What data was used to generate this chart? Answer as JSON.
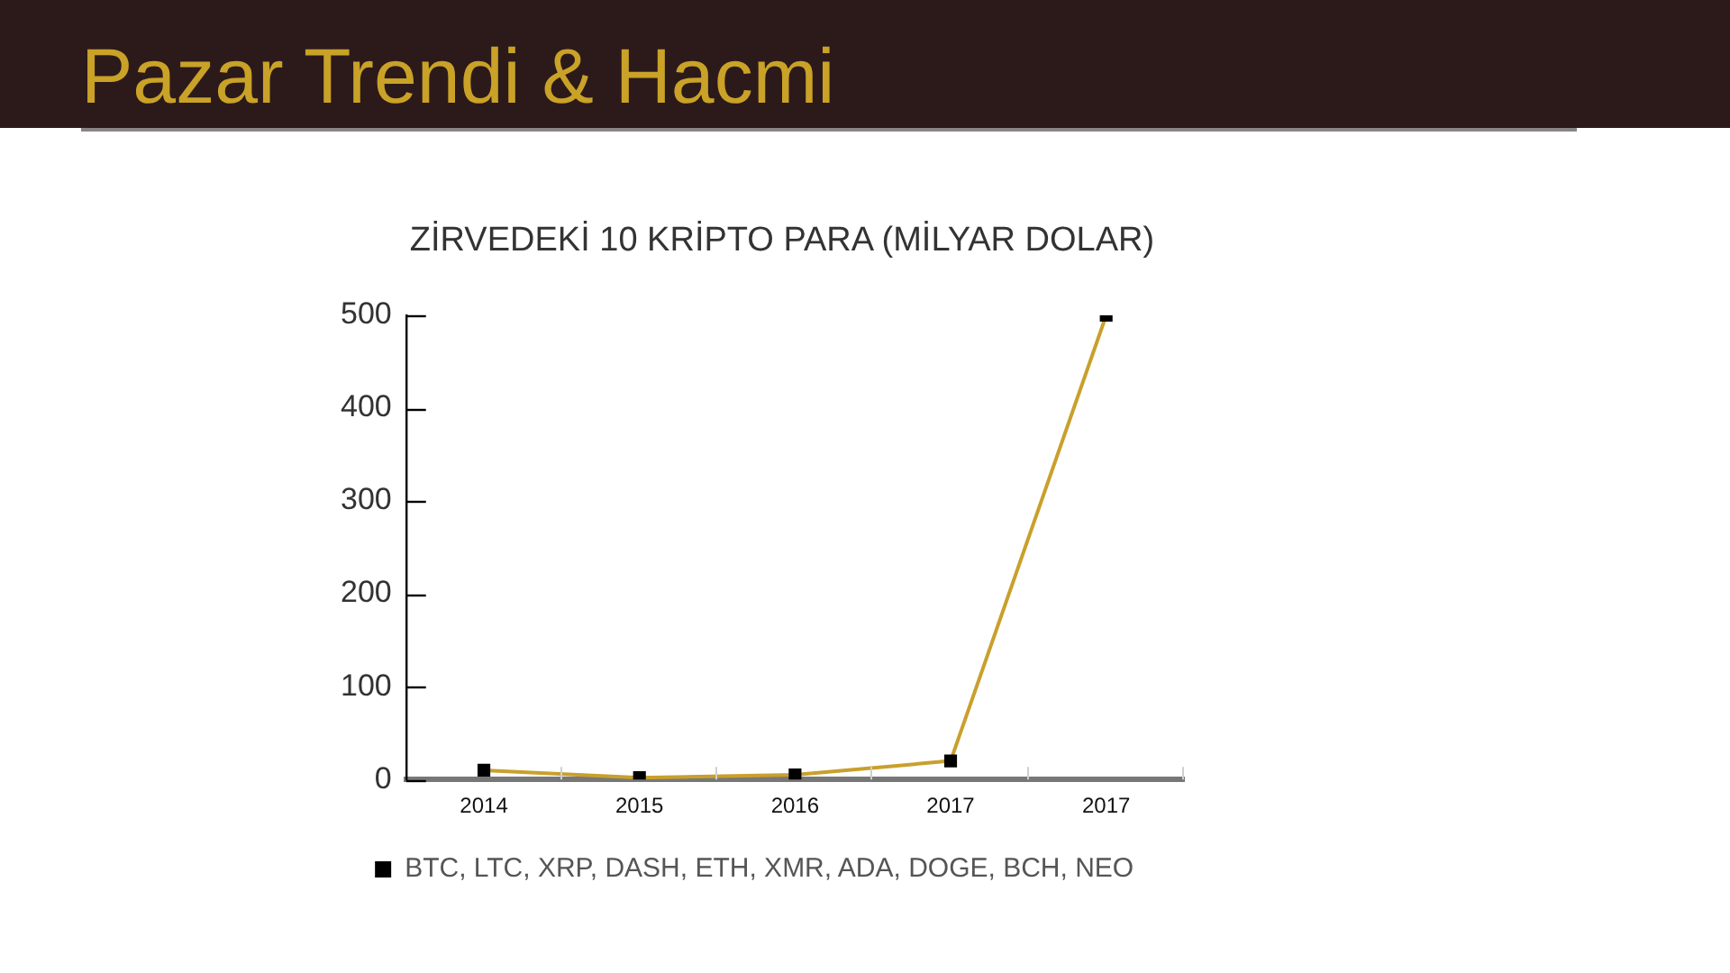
{
  "chart_data": {
    "type": "line",
    "title": "Pazar Trendi & Hacmi",
    "subtitle": "ZİRVEDEKİ 10 KRİPTO PARA (MİLYAR DOLAR)",
    "categories": [
      "2014",
      "2015",
      "2016",
      "2017",
      "2017"
    ],
    "series": [
      {
        "name": "BTC, LTC, XRP, DASH, ETH, XMR, ADA, DOGE, BCH, NEO",
        "color": "#c9a02c",
        "values": [
          10,
          2,
          5,
          20,
          500
        ]
      }
    ],
    "ylim": [
      0,
      500
    ],
    "yticks": [
      0,
      100,
      200,
      300,
      400,
      500
    ],
    "legend": "bottom",
    "marker": "square",
    "line_style": "solid"
  }
}
